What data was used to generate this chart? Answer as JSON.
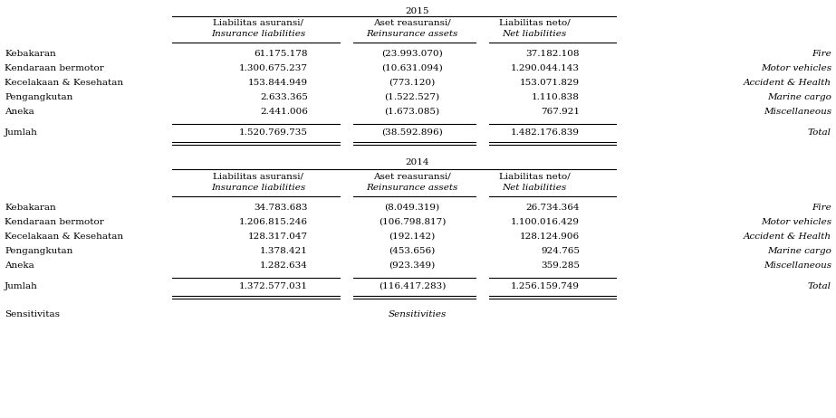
{
  "title_2015": "2015",
  "title_2014": "2014",
  "col_headers": [
    [
      "Liabilitas asuransi/",
      "Insurance liabilities"
    ],
    [
      "Aset reasuransi/",
      "Reinsurance assets"
    ],
    [
      "Liabilitas neto/",
      "Net liabilities"
    ]
  ],
  "rows_2015": [
    [
      "Kebakaran",
      "61.175.178",
      "(23.993.070)",
      "37.182.108",
      "Fire"
    ],
    [
      "Kendaraan bermotor",
      "1.300.675.237",
      "(10.631.094)",
      "1.290.044.143",
      "Motor vehicles"
    ],
    [
      "Kecelakaan & Kesehatan",
      "153.844.949",
      "(773.120)",
      "153.071.829",
      "Accident & Health"
    ],
    [
      "Pengangkutan",
      "2.633.365",
      "(1.522.527)",
      "1.110.838",
      "Marine cargo"
    ],
    [
      "Aneka",
      "2.441.006",
      "(1.673.085)",
      "767.921",
      "Miscellaneous"
    ]
  ],
  "total_2015": [
    "Jumlah",
    "1.520.769.735",
    "(38.592.896)",
    "1.482.176.839",
    "Total"
  ],
  "rows_2014": [
    [
      "Kebakaran",
      "34.783.683",
      "(8.049.319)",
      "26.734.364",
      "Fire"
    ],
    [
      "Kendaraan bermotor",
      "1.206.815.246",
      "(106.798.817)",
      "1.100.016.429",
      "Motor vehicles"
    ],
    [
      "Kecelakaan & Kesehatan",
      "128.317.047",
      "(192.142)",
      "128.124.906",
      "Accident & Health"
    ],
    [
      "Pengangkutan",
      "1.378.421",
      "(453.656)",
      "924.765",
      "Marine cargo"
    ],
    [
      "Aneka",
      "1.282.634",
      "(923.349)",
      "359.285",
      "Miscellaneous"
    ]
  ],
  "total_2014": [
    "Jumlah",
    "1.372.577.031",
    "(116.417.283)",
    "1.256.159.749",
    "Total"
  ],
  "footer_left": "Sensitivitas",
  "footer_right": "Sensitivities",
  "bg_color": "#ffffff",
  "text_color": "#000000",
  "font_size": 7.5,
  "line_color": "#000000"
}
